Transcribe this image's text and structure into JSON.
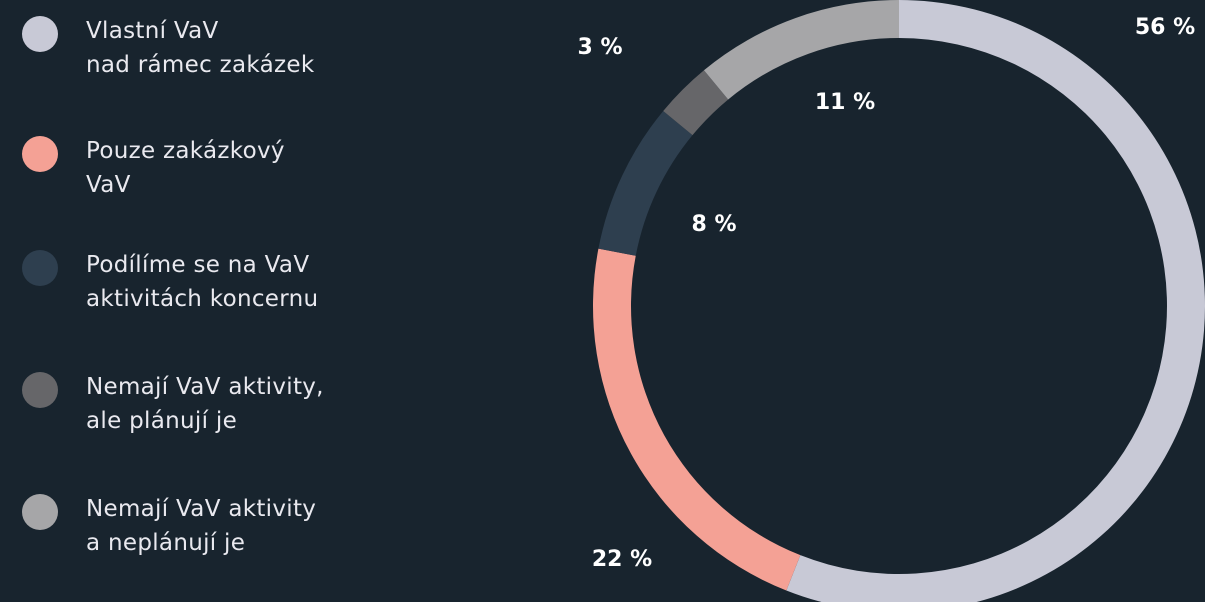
{
  "chart_data": {
    "type": "donut",
    "series": [
      {
        "name": "Vlastní VaV\nnad rámec zakázek",
        "color": "#c8c9d6",
        "values": [
          56
        ],
        "value_labels": [
          "56 %"
        ]
      },
      {
        "name": "Pouze zakázkový\nVaV",
        "color": "#f4a195",
        "values": [
          22
        ],
        "value_labels": [
          "22 %"
        ]
      },
      {
        "name": "Podílíme se na VaV\naktivitách koncernu",
        "color": "#2e3f4f",
        "values": [
          8
        ],
        "value_labels": [
          "8 %"
        ]
      },
      {
        "name": "Nemají VaV aktivity,\nale plánují je",
        "color": "#666669",
        "values": [
          3
        ],
        "value_labels": [
          "3 %"
        ]
      },
      {
        "name": "Nemají VaV aktivity\na neplánují je",
        "color": "#a6a6a8",
        "values": [
          11
        ],
        "value_labels": [
          "11 %"
        ]
      }
    ]
  }
}
